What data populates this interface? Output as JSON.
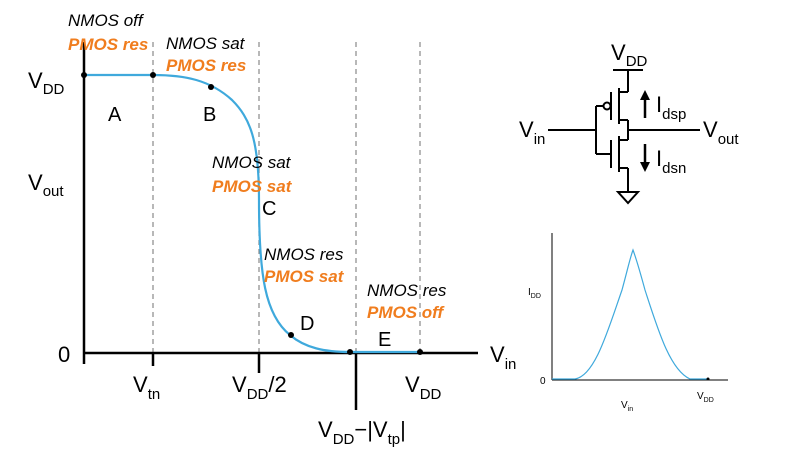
{
  "transfer": {
    "y_axis": {
      "vdd_main": "V",
      "vdd_sub": "DD",
      "vout_main": "V",
      "vout_sub": "out",
      "zero": "0"
    },
    "x_axis": {
      "vin_main": "V",
      "vin_sub": "in",
      "vtn_main": "V",
      "vtn_sub": "tn",
      "vdd2_main": "V",
      "vdd2_sub": "DD",
      "vdd2_tail": "/2",
      "vdd_main": "V",
      "vdd_sub": "DD",
      "vddvtp_a": "V",
      "vddvtp_b": "DD",
      "vddvtp_c": "−|V",
      "vddvtp_d": "tp",
      "vddvtp_e": "|"
    },
    "regions": [
      {
        "letter": "A",
        "nmos": "NMOS off",
        "pmos": "PMOS res"
      },
      {
        "letter": "B",
        "nmos": "NMOS sat",
        "pmos": "PMOS res"
      },
      {
        "letter": "C",
        "nmos": "NMOS sat",
        "pmos": "PMOS sat"
      },
      {
        "letter": "D",
        "nmos": "NMOS res",
        "pmos": "PMOS sat"
      },
      {
        "letter": "E",
        "nmos": "NMOS res",
        "pmos": "PMOS off"
      }
    ],
    "curve_color": "#3fa9dc",
    "label_accent": "#f07d1e"
  },
  "circuit": {
    "vdd_main": "V",
    "vdd_sub": "DD",
    "vin_main": "V",
    "vin_sub": "in",
    "vout_main": "V",
    "vout_sub": "out",
    "idsp_main": "I",
    "idsp_sub": "dsp",
    "idsn_main": "I",
    "idsn_sub": "dsn"
  },
  "current_plot": {
    "y_main": "I",
    "y_sub": "DD",
    "zero": "0",
    "x_main": "V",
    "x_sub": "in",
    "xvdd_main": "V",
    "xvdd_sub": "DD"
  }
}
